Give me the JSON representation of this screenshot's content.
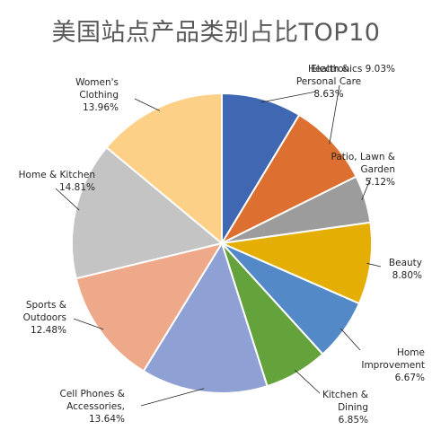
{
  "chart_data": {
    "type": "pie",
    "title": "美国站点产品类别占比TOP10",
    "slices": [
      {
        "lines": [
          "Health &",
          "Personal Care"
        ],
        "value_text": "8.63%",
        "value": 8.63,
        "color": "#4068B2"
      },
      {
        "lines": [
          "Electronics"
        ],
        "value_text": "9.03%",
        "value": 9.03,
        "color": "#DD7030"
      },
      {
        "lines": [
          "Patio, Lawn &",
          "Garden"
        ],
        "value_text": "5.12%",
        "value": 5.12,
        "color": "#9C9C9C"
      },
      {
        "lines": [
          "Beauty"
        ],
        "value_text": "8.80%",
        "value": 8.8,
        "color": "#E4AE05"
      },
      {
        "lines": [
          "Home",
          "Improvement"
        ],
        "value_text": "6.67%",
        "value": 6.67,
        "color": "#5489C8"
      },
      {
        "lines": [
          "Kitchen &",
          "Dining"
        ],
        "value_text": "6.85%",
        "value": 6.85,
        "color": "#64A23B"
      },
      {
        "lines": [
          "Cell Phones &",
          "Accessories,"
        ],
        "value_text": "13.64%",
        "value": 13.64,
        "color": "#8FA1D4"
      },
      {
        "lines": [
          "Sports &",
          "Outdoors"
        ],
        "value_text": "12.48%",
        "value": 12.48,
        "color": "#EEA98A"
      },
      {
        "lines": [
          "Home & Kitchen"
        ],
        "value_text": "14.81%",
        "value": 14.81,
        "color": "#C4C4C4"
      },
      {
        "lines": [
          "Women's",
          "Clothing"
        ],
        "value_text": "13.96%",
        "value": 13.96,
        "color": "#FDD088"
      }
    ]
  }
}
